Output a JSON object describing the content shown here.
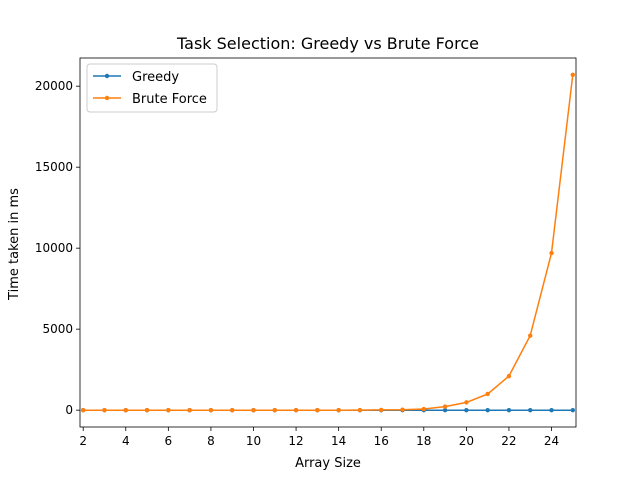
{
  "chart_data": {
    "type": "line",
    "title": "Task Selection: Greedy vs Brute Force",
    "xlabel": "Array Size",
    "ylabel": "Time taken in ms",
    "xlim": [
      1.85,
      25.15
    ],
    "ylim": [
      -1040,
      21740
    ],
    "x_ticks": [
      2,
      4,
      6,
      8,
      10,
      12,
      14,
      16,
      18,
      20,
      22,
      24
    ],
    "y_ticks": [
      0,
      5000,
      10000,
      15000,
      20000
    ],
    "x": [
      2,
      3,
      4,
      5,
      6,
      7,
      8,
      9,
      10,
      11,
      12,
      13,
      14,
      15,
      16,
      17,
      18,
      19,
      20,
      21,
      22,
      23,
      24,
      25
    ],
    "series": [
      {
        "name": "Greedy",
        "color": "#1f77b4",
        "values": [
          0,
          0,
          0,
          0,
          0,
          0,
          0,
          0,
          0,
          0,
          0,
          0,
          0,
          0,
          0,
          0,
          0,
          0,
          0,
          0,
          0,
          0,
          0,
          0
        ]
      },
      {
        "name": "Brute Force",
        "color": "#ff7f0e",
        "values": [
          0,
          0,
          0,
          0,
          0,
          0,
          0,
          0,
          0,
          0,
          0,
          0,
          0,
          5,
          15,
          30,
          70,
          220,
          480,
          1000,
          2100,
          4600,
          9700,
          20700
        ]
      }
    ],
    "grid": false,
    "legend": "top-left"
  }
}
